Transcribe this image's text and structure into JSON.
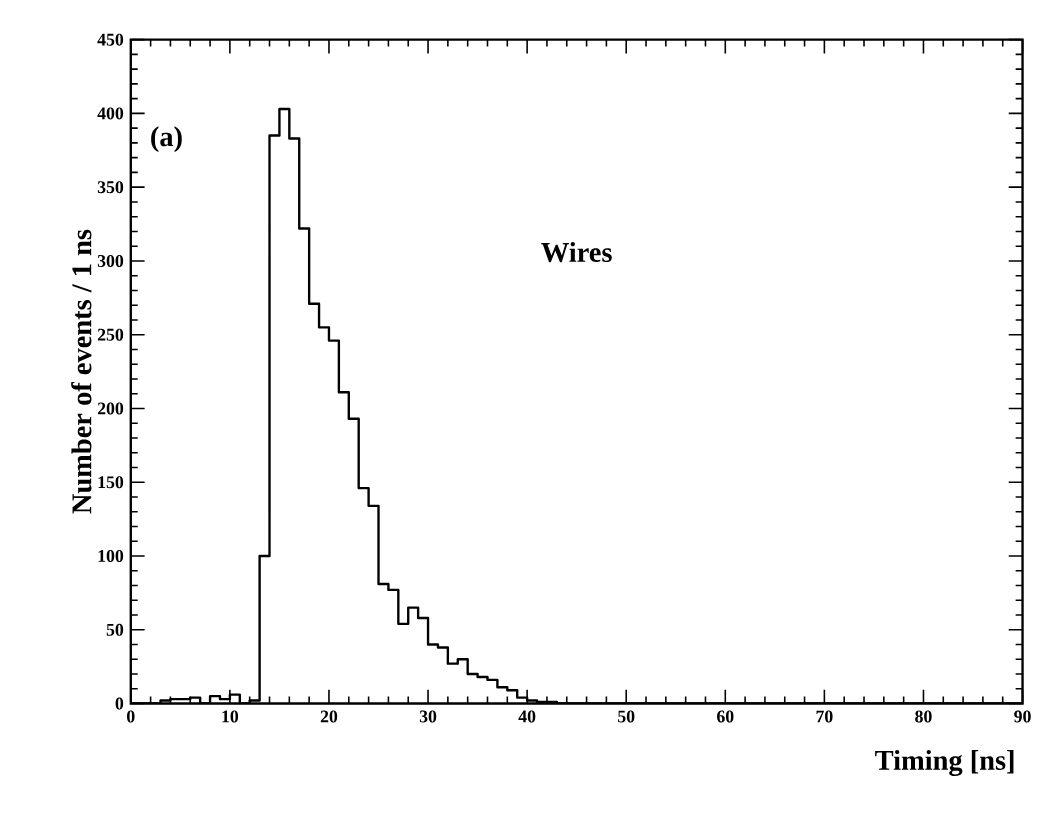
{
  "chart_data": {
    "type": "histogram",
    "xlabel": "Timing [ns]",
    "ylabel": "Number of events / 1 ns",
    "annotations": [
      "(a)",
      "Wires"
    ],
    "bins": [
      0,
      1,
      2,
      3,
      4,
      5,
      6,
      7,
      8,
      9,
      10,
      11,
      12,
      13,
      14,
      15,
      16,
      17,
      18,
      19,
      20,
      21,
      22,
      23,
      24,
      25,
      26,
      27,
      28,
      29,
      30,
      31,
      32,
      33,
      34,
      35,
      36,
      37,
      38,
      39,
      40,
      41,
      42,
      43,
      44,
      45,
      46,
      47,
      48,
      49,
      50,
      51,
      52,
      53,
      54,
      55,
      56,
      57,
      58,
      59,
      60,
      61,
      62,
      63,
      64,
      65,
      66,
      67,
      68,
      69,
      70,
      71,
      72,
      73,
      74,
      75,
      76,
      77,
      78,
      79,
      80,
      81,
      82,
      83,
      84,
      85,
      86,
      87,
      88,
      89,
      90
    ],
    "values": [
      0,
      0,
      0,
      2,
      3,
      3,
      4,
      0,
      5,
      3,
      6,
      0,
      2,
      100,
      385,
      403,
      383,
      322,
      271,
      255,
      246,
      211,
      193,
      146,
      134,
      81,
      77,
      54,
      65,
      58,
      40,
      38,
      27,
      30,
      20,
      18,
      16,
      11,
      9,
      4,
      2,
      1,
      1,
      0,
      0,
      0,
      0,
      0,
      0,
      0,
      0,
      0,
      0,
      0,
      0,
      0,
      0,
      0,
      0,
      0,
      0,
      0,
      0,
      0,
      0,
      0,
      0,
      0,
      0,
      0,
      0,
      0,
      0,
      0,
      0,
      0,
      0,
      0,
      0,
      0,
      0,
      0,
      0,
      0,
      0,
      0,
      0,
      0,
      0,
      0
    ],
    "color": "#000000",
    "xlim": [
      0,
      90
    ],
    "ylim": [
      0,
      450
    ],
    "xticks": [
      0,
      10,
      20,
      30,
      40,
      50,
      60,
      70,
      80,
      90
    ],
    "yticks": [
      0,
      50,
      100,
      150,
      200,
      250,
      300,
      350,
      400,
      450
    ]
  }
}
